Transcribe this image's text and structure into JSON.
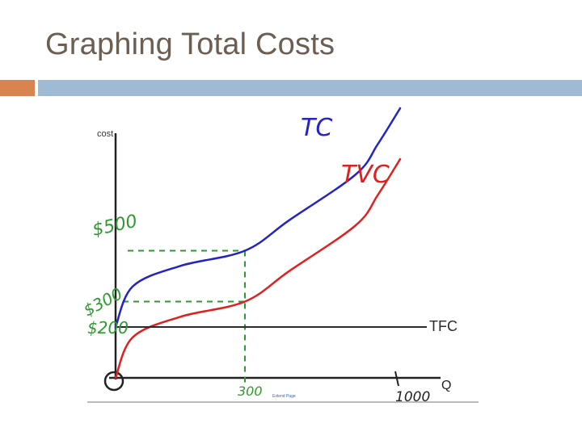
{
  "slide": {
    "title": "Graphing Total Costs",
    "accent_color": "#d9834f",
    "bar_color": "#9fbbd3",
    "title_color": "#6b5e52"
  },
  "chart_data": {
    "type": "line",
    "title": "",
    "xlabel": "Q",
    "ylabel": "cost",
    "x_tick_labels": [
      "0",
      "300",
      "1000"
    ],
    "y_tick_labels": [
      "$200",
      "$300",
      "$500"
    ],
    "series": [
      {
        "name": "TC",
        "color": "#2323c8",
        "points": [
          [
            0,
            200
          ],
          [
            40,
            360
          ],
          [
            150,
            440
          ],
          [
            300,
            500
          ],
          [
            500,
            620
          ],
          [
            800,
            800
          ],
          [
            900,
            920
          ],
          [
            1000,
            1060
          ]
        ]
      },
      {
        "name": "TVC",
        "color": "#e21f1f",
        "points": [
          [
            0,
            0
          ],
          [
            40,
            160
          ],
          [
            150,
            240
          ],
          [
            300,
            300
          ],
          [
            500,
            420
          ],
          [
            800,
            600
          ],
          [
            900,
            720
          ],
          [
            1000,
            860
          ]
        ]
      },
      {
        "name": "TFC",
        "color": "#2b2b2b",
        "points": [
          [
            0,
            200
          ],
          [
            1300,
            200
          ]
        ]
      }
    ],
    "annotations": {
      "guide_color": "#2c9a2c",
      "tc_at_300": 500,
      "tvc_at_300": 300,
      "guide_x": 300
    },
    "footnote": "Extend Page"
  }
}
